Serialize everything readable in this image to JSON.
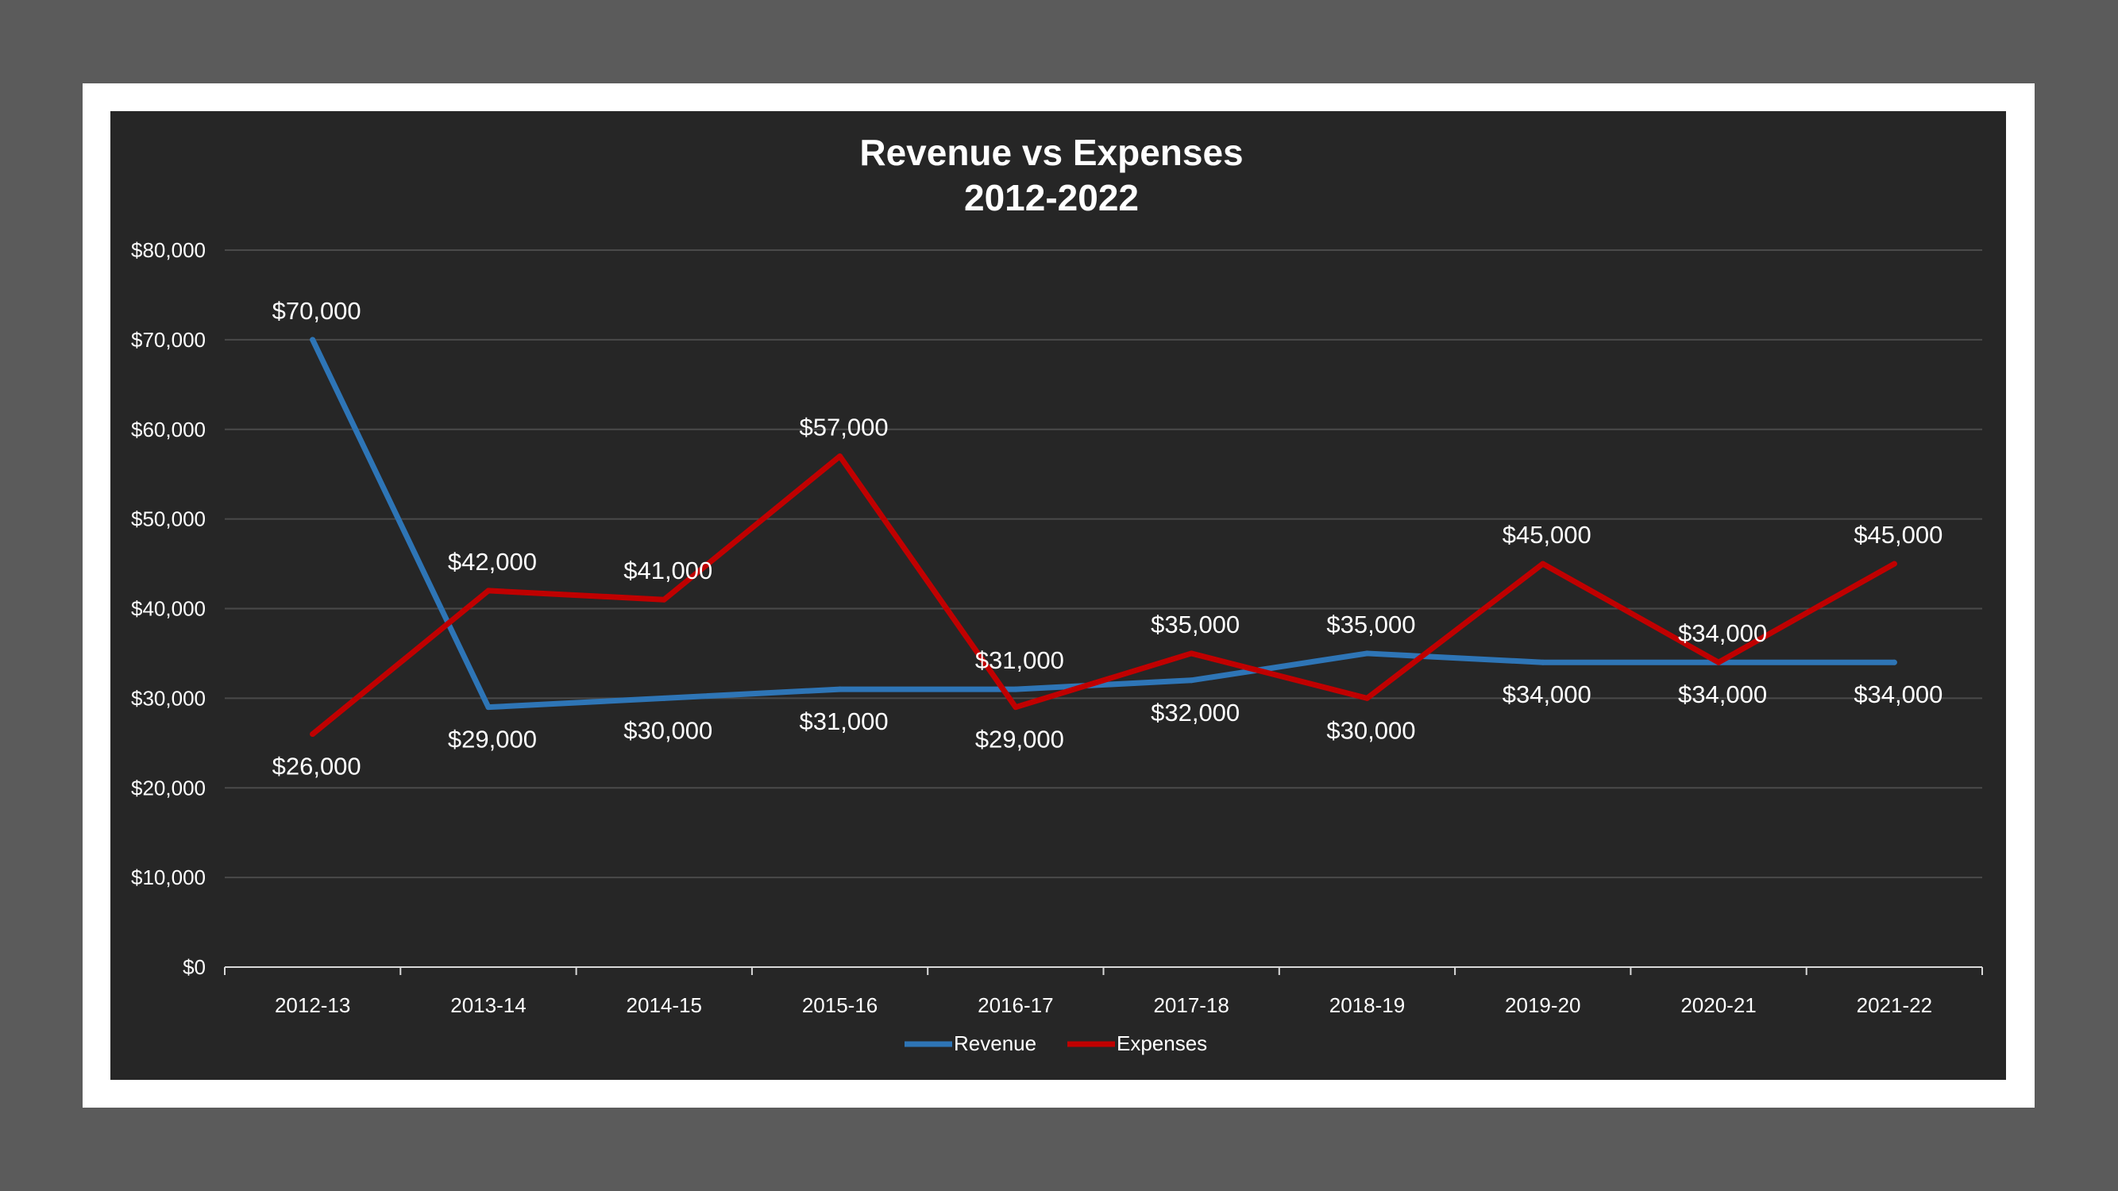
{
  "chart_data": {
    "type": "line",
    "title": "Revenue vs Expenses",
    "subtitle": "2012-2022",
    "categories": [
      "2012-13",
      "2013-14",
      "2014-15",
      "2015-16",
      "2016-17",
      "2017-18",
      "2018-19",
      "2019-20",
      "2020-21",
      "2021-22"
    ],
    "series": [
      {
        "name": "Revenue",
        "color": "#2e75b6",
        "values": [
          70000,
          29000,
          30000,
          31000,
          31000,
          32000,
          35000,
          34000,
          34000,
          34000
        ],
        "labels": [
          "$70,000",
          "$29,000",
          "$30,000",
          "$31,000",
          "$31,000",
          "$32,000",
          "$35,000",
          "$34,000",
          "$34,000",
          "$34,000"
        ],
        "label_side": [
          "above",
          "below",
          "below",
          "below",
          "above",
          "below",
          "above",
          "below",
          "below",
          "below"
        ]
      },
      {
        "name": "Expenses",
        "color": "#c00000",
        "values": [
          26000,
          42000,
          41000,
          57000,
          29000,
          35000,
          30000,
          45000,
          34000,
          45000
        ],
        "labels": [
          "$26,000",
          "$42,000",
          "$41,000",
          "$57,000",
          "$29,000",
          "$35,000",
          "$30,000",
          "$45,000",
          "$34,000",
          "$45,000"
        ],
        "label_side": [
          "below",
          "above",
          "above",
          "above",
          "below",
          "above",
          "below",
          "above",
          "above",
          "above"
        ]
      }
    ],
    "ylim": [
      0,
      80000
    ],
    "yticks": [
      0,
      10000,
      20000,
      30000,
      40000,
      50000,
      60000,
      70000,
      80000
    ],
    "ytick_labels": [
      "$0",
      "$10,000",
      "$20,000",
      "$30,000",
      "$40,000",
      "$50,000",
      "$60,000",
      "$70,000",
      "$80,000"
    ],
    "grid": true,
    "legend": "bottom",
    "colors": {
      "background": "#262626",
      "gridline": "#4a4a4a",
      "text": "#ffffff"
    }
  }
}
